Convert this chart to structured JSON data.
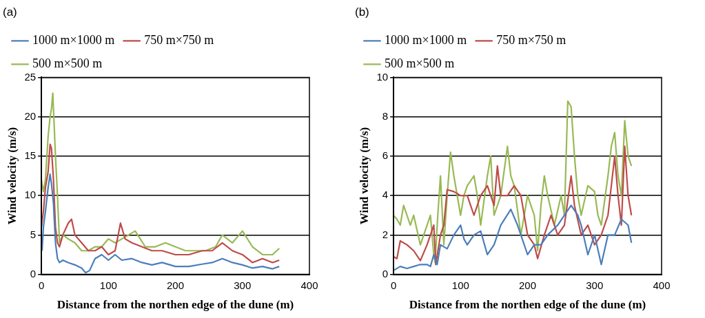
{
  "chart_data": [
    {
      "type": "line",
      "title": "(a)",
      "xlabel": "Distance from the northen edge of the dune (m)",
      "ylabel": "Wind velocity (m/s)",
      "xlim": [
        0,
        400
      ],
      "xticks": [
        0,
        100,
        200,
        300,
        400
      ],
      "ylim": [
        0,
        25
      ],
      "yticks": [
        0,
        5,
        10,
        15,
        20,
        25
      ],
      "grid": "y",
      "legend": "top",
      "marker": "none",
      "line_style": "solid",
      "series": [
        {
          "name": "1000 m×1000 m",
          "color": "#4a7ebb",
          "x": [
            1,
            3,
            6,
            10,
            13,
            15,
            18,
            21,
            24,
            27,
            32,
            40,
            50,
            60,
            66,
            72,
            80,
            90,
            100,
            110,
            120,
            135,
            150,
            165,
            180,
            200,
            220,
            240,
            255,
            270,
            285,
            300,
            315,
            330,
            345,
            355
          ],
          "values": [
            3,
            6,
            8,
            11,
            12.7,
            11.5,
            9,
            4,
            2,
            1.5,
            1.8,
            1.5,
            1.2,
            0.8,
            0.2,
            0.5,
            2,
            2.5,
            1.8,
            2.5,
            1.8,
            2,
            1.5,
            1.2,
            1.5,
            1,
            1,
            1.3,
            1.5,
            2,
            1.5,
            1.2,
            0.8,
            1,
            0.7,
            1
          ]
        },
        {
          "name": "750 m×750 m",
          "color": "#be4b48",
          "x": [
            0,
            3,
            6,
            10,
            13,
            15,
            18,
            21,
            24,
            27,
            32,
            40,
            45,
            50,
            60,
            70,
            80,
            90,
            100,
            110,
            118,
            125,
            135,
            150,
            165,
            180,
            200,
            220,
            240,
            255,
            270,
            285,
            300,
            315,
            330,
            345,
            355
          ],
          "values": [
            6,
            8,
            11,
            13,
            16.5,
            16,
            12,
            6,
            4,
            3.5,
            5,
            6.5,
            7,
            5,
            4,
            3,
            3,
            3.5,
            2.5,
            3,
            6.5,
            4.5,
            4,
            3.5,
            3,
            3,
            2.5,
            2.5,
            3,
            3,
            4,
            3,
            2.5,
            1.5,
            2,
            1.5,
            1.8
          ]
        },
        {
          "name": "500 m×500 m",
          "color": "#98b954",
          "x": [
            0,
            3,
            6,
            10,
            13,
            15,
            17,
            19,
            21,
            24,
            27,
            32,
            40,
            50,
            60,
            70,
            80,
            90,
            100,
            110,
            120,
            130,
            140,
            155,
            170,
            185,
            200,
            215,
            230,
            245,
            260,
            270,
            285,
            300,
            315,
            330,
            345,
            355
          ],
          "values": [
            12,
            10.5,
            12,
            17.5,
            20,
            21,
            23,
            19,
            15,
            10,
            4,
            5,
            4.5,
            4,
            3,
            3,
            3.5,
            3.5,
            4.5,
            4,
            4.5,
            5,
            5.5,
            3.5,
            3.5,
            4,
            3.5,
            3,
            3,
            3,
            3.5,
            5,
            4,
            5.5,
            3.5,
            2.5,
            2.5,
            3.3
          ]
        }
      ]
    },
    {
      "type": "line",
      "title": "(b)",
      "xlabel": "Distance from the northen edge of the dune (m)",
      "ylabel": "Wind velocity (m/s)",
      "xlim": [
        0,
        400
      ],
      "xticks": [
        0,
        100,
        200,
        300,
        400
      ],
      "ylim": [
        0,
        10
      ],
      "yticks": [
        0,
        2,
        4,
        6,
        8,
        10
      ],
      "grid": "y",
      "legend": "top",
      "marker": "none",
      "line_style": "solid",
      "series": [
        {
          "name": "1000 m×1000 m",
          "color": "#4a7ebb",
          "x": [
            0,
            10,
            20,
            30,
            40,
            50,
            55,
            60,
            65,
            70,
            80,
            90,
            100,
            105,
            110,
            120,
            130,
            140,
            150,
            160,
            175,
            185,
            190,
            200,
            210,
            220,
            230,
            245,
            255,
            265,
            275,
            280,
            290,
            300,
            310,
            320,
            330,
            340,
            350,
            355
          ],
          "values": [
            0.2,
            0.4,
            0.3,
            0.4,
            0.5,
            0.5,
            0.4,
            1,
            0.5,
            1.5,
            1.3,
            2,
            2.5,
            1.8,
            1.5,
            2,
            2.2,
            1,
            1.5,
            2.5,
            3.3,
            2.5,
            2,
            1,
            1.5,
            1.5,
            2,
            2.5,
            3,
            3.5,
            3,
            2.5,
            1,
            2,
            0.5,
            2,
            2,
            2.8,
            2.5,
            1.6
          ]
        },
        {
          "name": "750 m×750 m",
          "color": "#be4b48",
          "x": [
            0,
            5,
            10,
            20,
            30,
            40,
            50,
            55,
            60,
            63,
            70,
            75,
            80,
            90,
            100,
            110,
            120,
            130,
            140,
            150,
            155,
            160,
            170,
            180,
            190,
            200,
            210,
            215,
            225,
            235,
            245,
            255,
            265,
            270,
            280,
            290,
            300,
            310,
            320,
            330,
            335,
            340,
            345,
            350,
            355
          ],
          "values": [
            0.9,
            0.8,
            1.7,
            1.5,
            1.2,
            0.7,
            1.5,
            2,
            2.5,
            0.5,
            2,
            2.5,
            4.3,
            4.2,
            4,
            4,
            3,
            4,
            4.5,
            3.5,
            5.5,
            4,
            4,
            4.5,
            4,
            2,
            1.5,
            0.8,
            2,
            3,
            2,
            2.5,
            5,
            3.5,
            2,
            2.5,
            1.5,
            2,
            3,
            6,
            4,
            2.5,
            6.5,
            4,
            3
          ]
        },
        {
          "name": "500 m×500 m",
          "color": "#98b954",
          "x": [
            0,
            5,
            10,
            15,
            20,
            25,
            30,
            40,
            50,
            55,
            60,
            62,
            66,
            70,
            75,
            80,
            85,
            90,
            100,
            105,
            110,
            120,
            125,
            130,
            140,
            145,
            150,
            160,
            170,
            175,
            180,
            190,
            200,
            210,
            215,
            220,
            225,
            230,
            240,
            250,
            255,
            260,
            265,
            270,
            275,
            280,
            290,
            300,
            305,
            310,
            320,
            325,
            330,
            335,
            340,
            345,
            350,
            355
          ],
          "values": [
            3,
            2.8,
            2.5,
            3.5,
            3,
            2.5,
            3,
            1.5,
            2.5,
            3,
            1,
            0.6,
            3,
            5,
            1.5,
            4,
            6.2,
            5,
            3,
            4,
            4.5,
            5,
            4,
            2.5,
            5,
            6,
            3,
            4,
            6.5,
            5,
            4.5,
            2,
            4,
            3,
            1.2,
            3.5,
            5,
            4,
            2.5,
            4,
            3,
            8.8,
            8.5,
            6,
            4,
            3,
            4.5,
            4.2,
            3,
            2.5,
            5,
            6.5,
            7.2,
            5,
            4,
            7.8,
            6,
            5.5
          ]
        }
      ]
    }
  ]
}
